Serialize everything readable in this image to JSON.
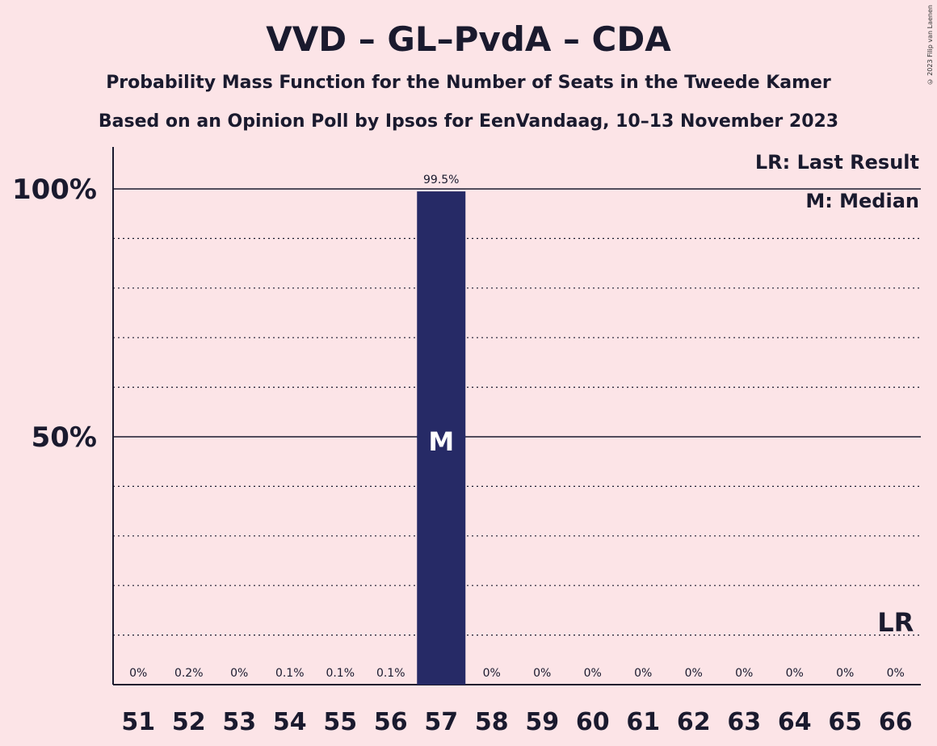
{
  "title": "VVD – GL–PvdA – CDA",
  "subtitle1": "Probability Mass Function for the Number of Seats in the Tweede Kamer",
  "subtitle2": "Based on an Opinion Poll by Ipsos for EenVandaag, 10–13 November 2023",
  "copyright": "© 2023 Filip van Laenen",
  "legend": {
    "lr": "LR: Last Result",
    "m": "M: Median"
  },
  "colors": {
    "bar": "#262a66",
    "background": "#fce4e7",
    "text": "#1a1a2e"
  },
  "chart_data": {
    "type": "bar",
    "categories": [
      "51",
      "52",
      "53",
      "54",
      "55",
      "56",
      "57",
      "58",
      "59",
      "60",
      "61",
      "62",
      "63",
      "64",
      "65",
      "66"
    ],
    "values": [
      0,
      0.2,
      0,
      0.1,
      0.1,
      0.1,
      99.5,
      0,
      0,
      0,
      0,
      0,
      0,
      0,
      0,
      0
    ],
    "value_labels": [
      "0%",
      "0.2%",
      "0%",
      "0.1%",
      "0.1%",
      "0.1%",
      "99.5%",
      "0%",
      "0%",
      "0%",
      "0%",
      "0%",
      "0%",
      "0%",
      "0%",
      "0%"
    ],
    "ylim": [
      0,
      100
    ],
    "yticks": [
      {
        "value": 50,
        "label": "50%"
      },
      {
        "value": 100,
        "label": "100%"
      }
    ],
    "grid": "dotted every 10%",
    "median": {
      "category": "57",
      "label": "M"
    },
    "last_result": {
      "category": "66",
      "label": "LR"
    },
    "legend_placement": "top-right"
  }
}
